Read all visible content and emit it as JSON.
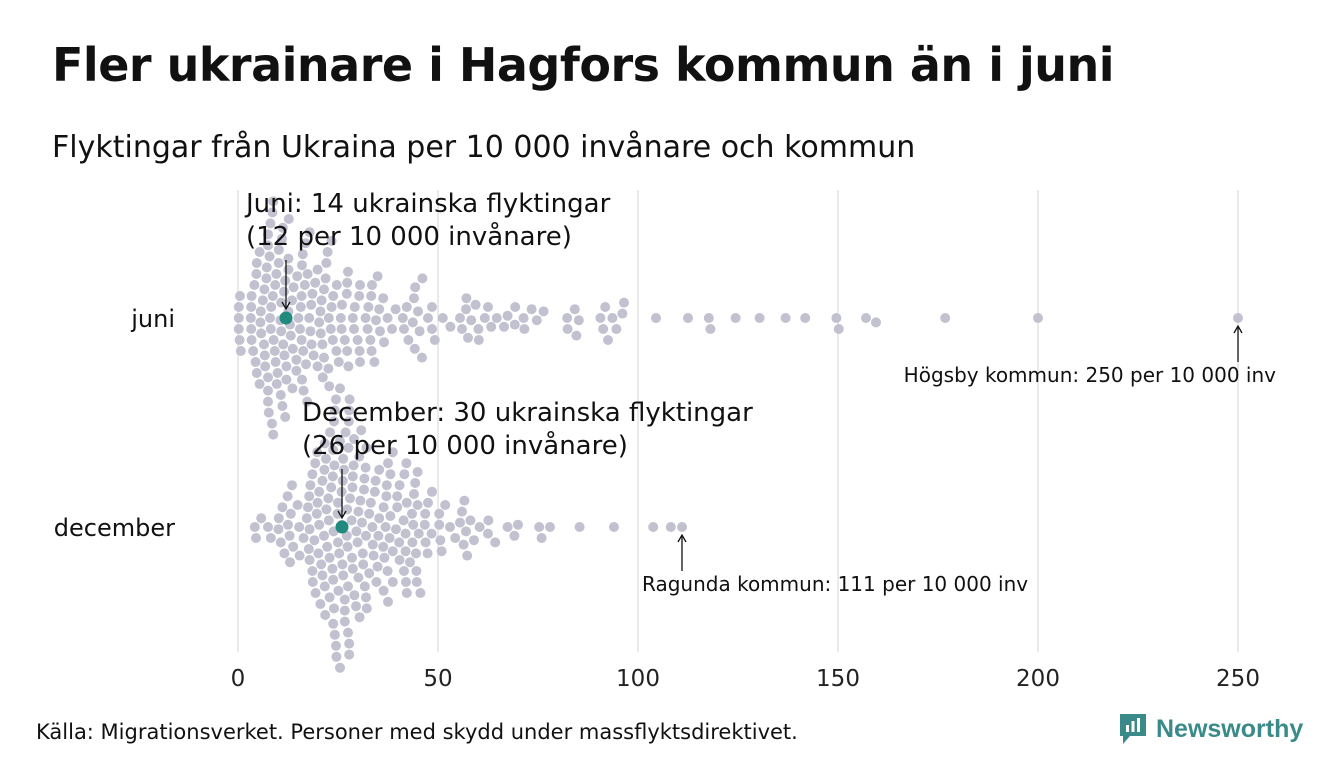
{
  "title": "Fler ukrainare i Hagfors kommun än i juni",
  "subtitle": "Flyktingar från Ukraina per 10 000 invånare och kommun",
  "source": "Källa: Migrationsverket. Personer med skydd under massflyktsdirektivet.",
  "brand": {
    "name": "Newsworthy",
    "icon": "newsworthy-logo-icon",
    "color": "#3a8a8a"
  },
  "colors": {
    "dot": "#c2c1d0",
    "highlight": "#1f8a7d",
    "grid": "#d4d4d4"
  },
  "chart_data": {
    "type": "scatter",
    "xlim": [
      0,
      250
    ],
    "x_ticks": [
      "0",
      "50",
      "100",
      "150",
      "200",
      "250"
    ],
    "grid": true,
    "series": [
      {
        "name": "juni",
        "max": 250,
        "highlight": 12,
        "values": [
          0.2,
          0.2,
          0.2,
          0.4,
          0.5,
          0.7,
          3.2,
          3.3,
          3.3,
          3.4,
          3.4,
          3.8,
          4.1,
          4.4,
          4.6,
          4.7,
          4.7,
          5.4,
          5.4,
          5.6,
          5.7,
          5.8,
          6.2,
          6.5,
          6.6,
          6.7,
          6.8,
          7.1,
          7.2,
          7.5,
          7.5,
          7.5,
          7.5,
          7.5,
          7.7,
          7.9,
          8,
          8.1,
          8.2,
          8.3,
          8.5,
          8.6,
          8.7,
          8.8,
          8.8,
          8.9,
          9.2,
          9.3,
          9.4,
          9.6,
          9.7,
          9.9,
          10.2,
          10.2,
          10.6,
          10.7,
          10.8,
          10.8,
          11,
          11.1,
          11.2,
          11.3,
          11.5,
          11.6,
          11.8,
          11.8,
          12.1,
          12.1,
          12.6,
          12.6,
          12.6,
          12.7,
          13,
          13.2,
          13.5,
          13.6,
          13.7,
          13.9,
          14.6,
          14.6,
          14.8,
          15.1,
          15.5,
          15.7,
          15.9,
          15.9,
          16,
          16,
          16.2,
          16.3,
          16.4,
          16.7,
          16.9,
          17,
          17.3,
          17.4,
          17.8,
          17.9,
          18.1,
          18.3,
          18.4,
          18.6,
          18.9,
          19.3,
          19.9,
          19.9,
          20.3,
          20.6,
          20.7,
          20.9,
          21.1,
          21.2,
          21.5,
          21.5,
          21.9,
          22.1,
          22.4,
          22.6,
          22.7,
          22.8,
          23.2,
          23.4,
          23.4,
          23.7,
          23.8,
          24.6,
          24.7,
          25.2,
          25.7,
          25.9,
          26,
          26.7,
          27.2,
          27.3,
          27.3,
          27.5,
          27.6,
          28.7,
          29,
          29.2,
          29.9,
          30.3,
          30.4,
          30.5,
          30.5,
          31.9,
          32.4,
          32.6,
          33.1,
          33.3,
          33.4,
          33.5,
          34.1,
          34.5,
          34.9,
          35.3,
          35.5,
          36.3,
          36.5,
          37.4,
          38.5,
          39.4,
          41.2,
          41.5,
          42.2,
          42.6,
          43.7,
          44,
          44.2,
          44.3,
          45,
          45.4,
          46,
          46.1,
          47.5,
          48.5,
          48.5,
          49.2,
          51.2,
          53.1,
          55.5,
          56,
          57,
          57.1,
          57.5,
          58.3,
          59.4,
          60.1,
          60.2,
          61.7,
          62.5,
          63.3,
          64.7,
          66.5,
          67.4,
          69.2,
          69.3,
          71.4,
          71.6,
          73.4,
          74.7,
          76.4,
          82.3,
          82.4,
          84.2,
          84.6,
          85.2,
          90.6,
          91.3,
          91.8,
          92.5,
          93.6,
          94.6,
          96.1,
          96.5,
          104.5,
          112.5,
          117.7,
          118.1,
          124.4,
          130.4,
          136.9,
          141.8,
          149.6,
          150.2,
          157,
          159.5,
          176.8,
          200,
          250
        ]
      },
      {
        "name": "december",
        "max": 111,
        "highlight": 26,
        "values": [
          4.2,
          4.5,
          5.8,
          7.5,
          8.2,
          10.1,
          10.2,
          10.7,
          11.1,
          11.6,
          12.4,
          12.5,
          12.9,
          13,
          13.2,
          13.5,
          13.8,
          14.9,
          15.3,
          15.4,
          16.4,
          17.2,
          17.5,
          17.7,
          17.8,
          17.9,
          17.9,
          18.1,
          18.6,
          18.6,
          18.7,
          19.1,
          19.3,
          19.4,
          19.7,
          19.8,
          19.9,
          20.1,
          20.3,
          20.3,
          20.6,
          20.8,
          21.1,
          21.1,
          21.5,
          21.6,
          21.7,
          21.7,
          21.8,
          22,
          22.1,
          22.3,
          22.6,
          22.7,
          22.9,
          22.9,
          23,
          23.3,
          23.6,
          23.7,
          23.8,
          23.8,
          23.8,
          23.9,
          24,
          24,
          24.1,
          24.2,
          24.2,
          24.5,
          24.5,
          24.6,
          24.9,
          25,
          25,
          25.1,
          25.3,
          25.5,
          25.5,
          25.5,
          25.9,
          26,
          26.1,
          26.2,
          26.3,
          26.3,
          26.5,
          26.7,
          26.7,
          26.7,
          26.9,
          27.2,
          27.3,
          27.4,
          27.5,
          27.5,
          27.6,
          27.7,
          27.8,
          27.8,
          27.8,
          27.9,
          28,
          28.4,
          28.5,
          28.6,
          28.7,
          28.7,
          28.9,
          29,
          29.1,
          29.5,
          29.6,
          29.9,
          30.1,
          30.1,
          30.3,
          30.4,
          30.6,
          30.8,
          31,
          31.2,
          31.3,
          31.5,
          31.6,
          31.7,
          31.9,
          32,
          32,
          32.1,
          32.2,
          32.8,
          32.8,
          33.2,
          33.6,
          33.7,
          33.9,
          34.2,
          34.4,
          34.6,
          34.9,
          35.1,
          35.3,
          35.3,
          36.3,
          36.4,
          36.4,
          36.6,
          36.9,
          37.1,
          37.2,
          37.4,
          37.5,
          37.5,
          37.9,
          38.1,
          38.1,
          38.7,
          38.7,
          38.7,
          39.5,
          39.8,
          39.8,
          40.3,
          40.4,
          40.4,
          41.4,
          41.5,
          41.6,
          41.9,
          41.9,
          42,
          42.1,
          42.2,
          42.2,
          43,
          43.5,
          43.6,
          43.8,
          44,
          44.3,
          44.5,
          44.6,
          44.7,
          44.9,
          44.9,
          45.2,
          45.6,
          46.7,
          46.8,
          46.9,
          47.4,
          47.5,
          48.4,
          48.5,
          50.3,
          50.3,
          50.6,
          50.9,
          51.8,
          53,
          54.3,
          55.5,
          56,
          56.4,
          56.6,
          57,
          57.3,
          58.1,
          59,
          60.4,
          62.5,
          62.6,
          64.3,
          67.4,
          69.1,
          70,
          75.3,
          75.9,
          78,
          85.4,
          94,
          103.8,
          108.2,
          111
        ]
      }
    ],
    "annotations": [
      {
        "series": "juni",
        "value": 12,
        "lines": [
          "Juni: 14 ukrainska flyktingar",
          "(12 per 10 000 invånare)"
        ]
      },
      {
        "series": "juni",
        "value": 250,
        "text": "Högsby kommun: 250 per 10 000 inv"
      },
      {
        "series": "december",
        "value": 26,
        "lines": [
          "December: 30 ukrainska flyktingar",
          "(26 per 10 000 invånare)"
        ]
      },
      {
        "series": "december",
        "value": 111,
        "text": "Ragunda kommun: 111 per 10 000 inv"
      }
    ]
  }
}
